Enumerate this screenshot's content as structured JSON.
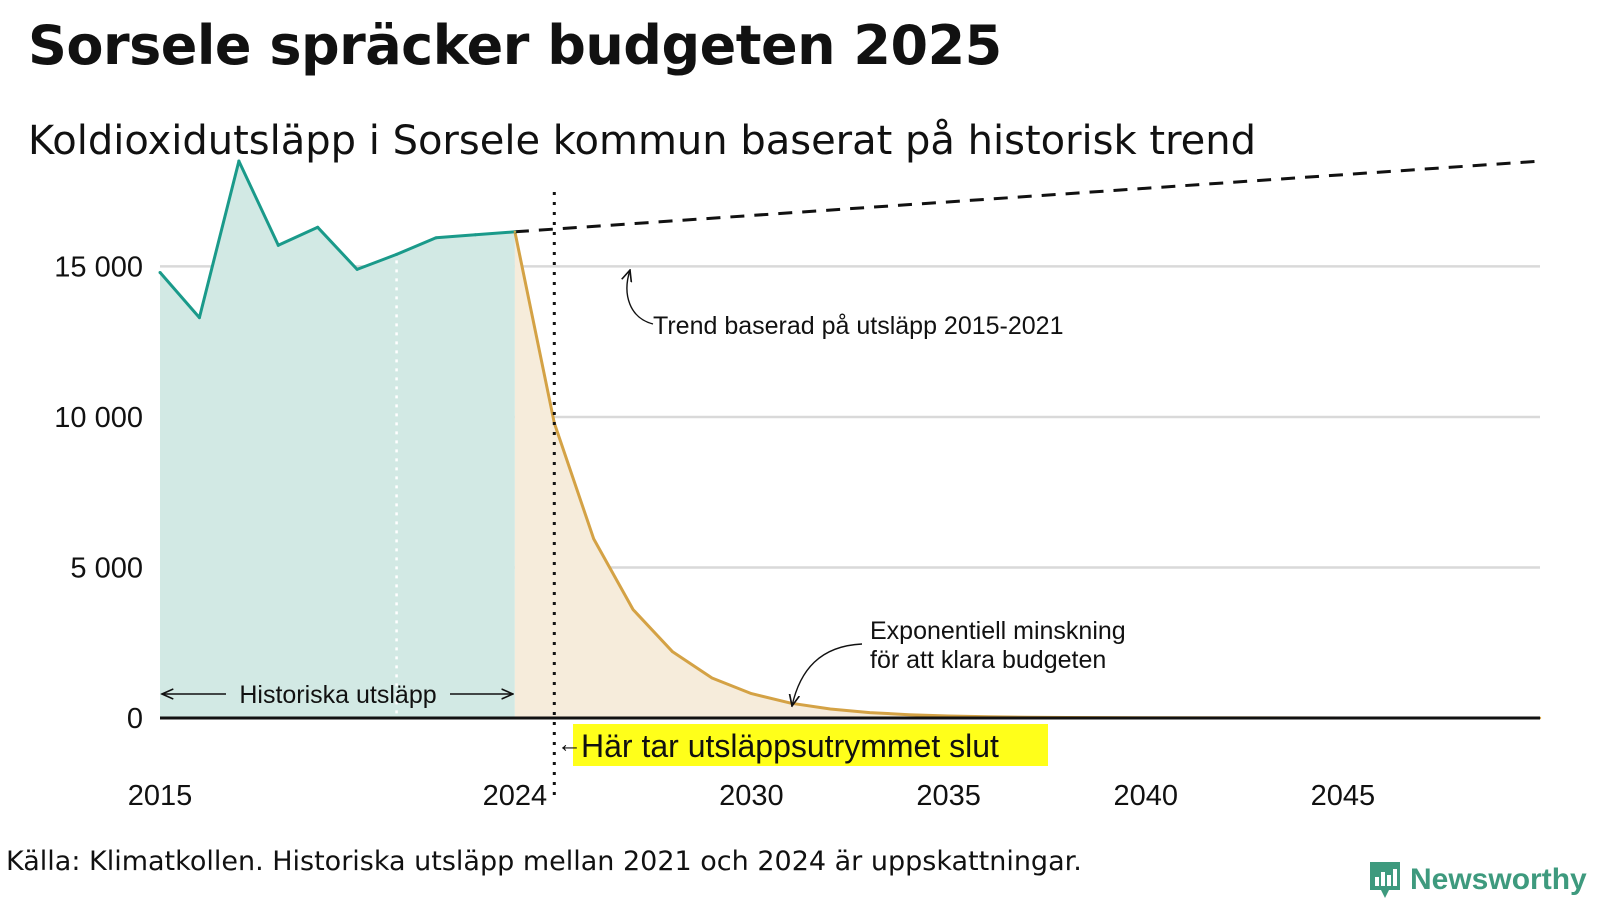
{
  "title": "Sorsele spräcker budgeten 2025",
  "subtitle": "Koldioxidutsläpp i Sorsele kommun baserat på historisk trend",
  "source": "Källa: Klimatkollen. Historiska utsläpp mellan 2021 och 2024 är uppskattningar.",
  "brand": {
    "name": "Newsworthy",
    "color": "#3e9a7e"
  },
  "colors": {
    "historical_line": "#1a9a8a",
    "historical_fill": "#d2e9e4",
    "decline_line": "#d4a245",
    "decline_fill": "#f6ecdb",
    "trend_line": "#111111",
    "grid": "#d9d9d9",
    "highlight": "#ffff1a"
  },
  "chart_data": {
    "type": "line",
    "xlim": [
      2015,
      2050
    ],
    "ylim": [
      0,
      19000
    ],
    "x_ticks": [
      2015,
      2024,
      2030,
      2035,
      2040,
      2045
    ],
    "y_ticks": [
      0,
      5000,
      10000,
      15000
    ],
    "y_tick_labels": [
      "0",
      "5 000",
      "10 000",
      "15 000"
    ],
    "series": [
      {
        "name": "Historiska utsläpp",
        "x": [
          2015,
          2016,
          2017,
          2018,
          2019,
          2020,
          2021,
          2022,
          2023,
          2024
        ],
        "y": [
          14800,
          13300,
          18500,
          15700,
          16300,
          14900,
          15400,
          15950,
          16050,
          16150
        ]
      },
      {
        "name": "Trend baserad på utsläpp 2015-2021",
        "x": [
          2024,
          2050
        ],
        "y": [
          16150,
          18500
        ]
      },
      {
        "name": "Exponentiell minskning för att klara budgeten",
        "x": [
          2024,
          2025,
          2026,
          2027,
          2028,
          2029,
          2030,
          2031,
          2032,
          2033,
          2034,
          2035,
          2036,
          2037,
          2038,
          2040,
          2045,
          2050
        ],
        "y": [
          16150,
          9800,
          5950,
          3600,
          2200,
          1330,
          810,
          490,
          300,
          180,
          110,
          67,
          41,
          25,
          15,
          6,
          1,
          0
        ]
      }
    ],
    "budget_end_year": 2025,
    "estimate_start_year": 2021,
    "annotations": {
      "historical": "Historiska utsläpp",
      "trend": "Trend baserad på utsläpp 2015-2021",
      "decline_line1": "Exponentiell minskning",
      "decline_line2": "för att klara budgeten",
      "budget_end": "Här tar utsläppsutrymmet slut",
      "budget_end_arrow": "←"
    }
  }
}
